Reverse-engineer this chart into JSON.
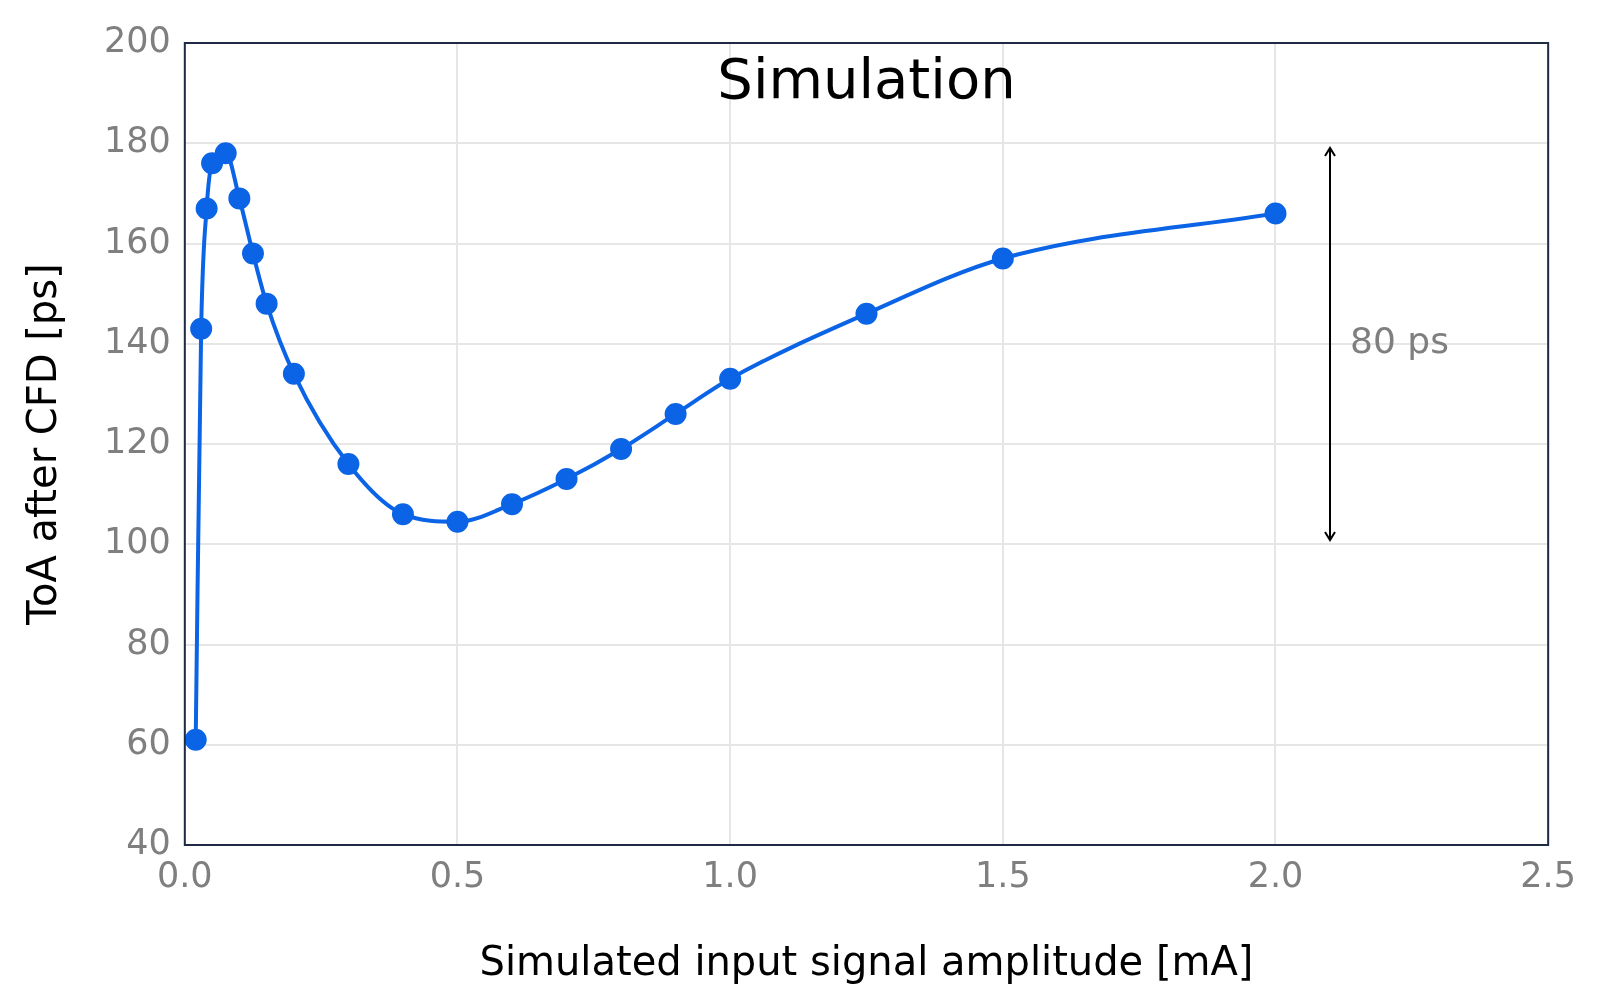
{
  "chart_data": {
    "type": "line",
    "title": "Simulation",
    "xlabel": "Simulated input signal amplitude [mA]",
    "ylabel": "ToA after CFD [ps]",
    "x": [
      0.02,
      0.03,
      0.04,
      0.05,
      0.075,
      0.1,
      0.125,
      0.15,
      0.2,
      0.3,
      0.4,
      0.5,
      0.6,
      0.7,
      0.8,
      0.9,
      1.0,
      1.25,
      1.5,
      2.0
    ],
    "series": [
      {
        "color": "#0b63e5",
        "values": [
          61,
          143,
          167,
          176,
          178,
          169,
          158,
          148,
          134,
          116,
          106,
          104.5,
          108,
          113,
          119,
          126,
          133,
          146,
          157,
          166
        ]
      }
    ],
    "xlim": [
      0,
      2.5
    ],
    "xticks": [
      {
        "value": 0,
        "label": "0.0"
      },
      {
        "value": 0.5,
        "label": "0.5"
      },
      {
        "value": 1,
        "label": "1.0"
      },
      {
        "value": 1.5,
        "label": "1.5"
      },
      {
        "value": 2,
        "label": "2.0"
      },
      {
        "value": 2.5,
        "label": "2.5"
      }
    ],
    "ylim": [
      40,
      200
    ],
    "yticks": [
      40,
      60,
      80,
      100,
      120,
      140,
      160,
      180,
      200
    ],
    "grid": true,
    "marker": "circle",
    "line_style": "solid",
    "legend": false,
    "annotations": [
      "80 ps"
    ]
  }
}
